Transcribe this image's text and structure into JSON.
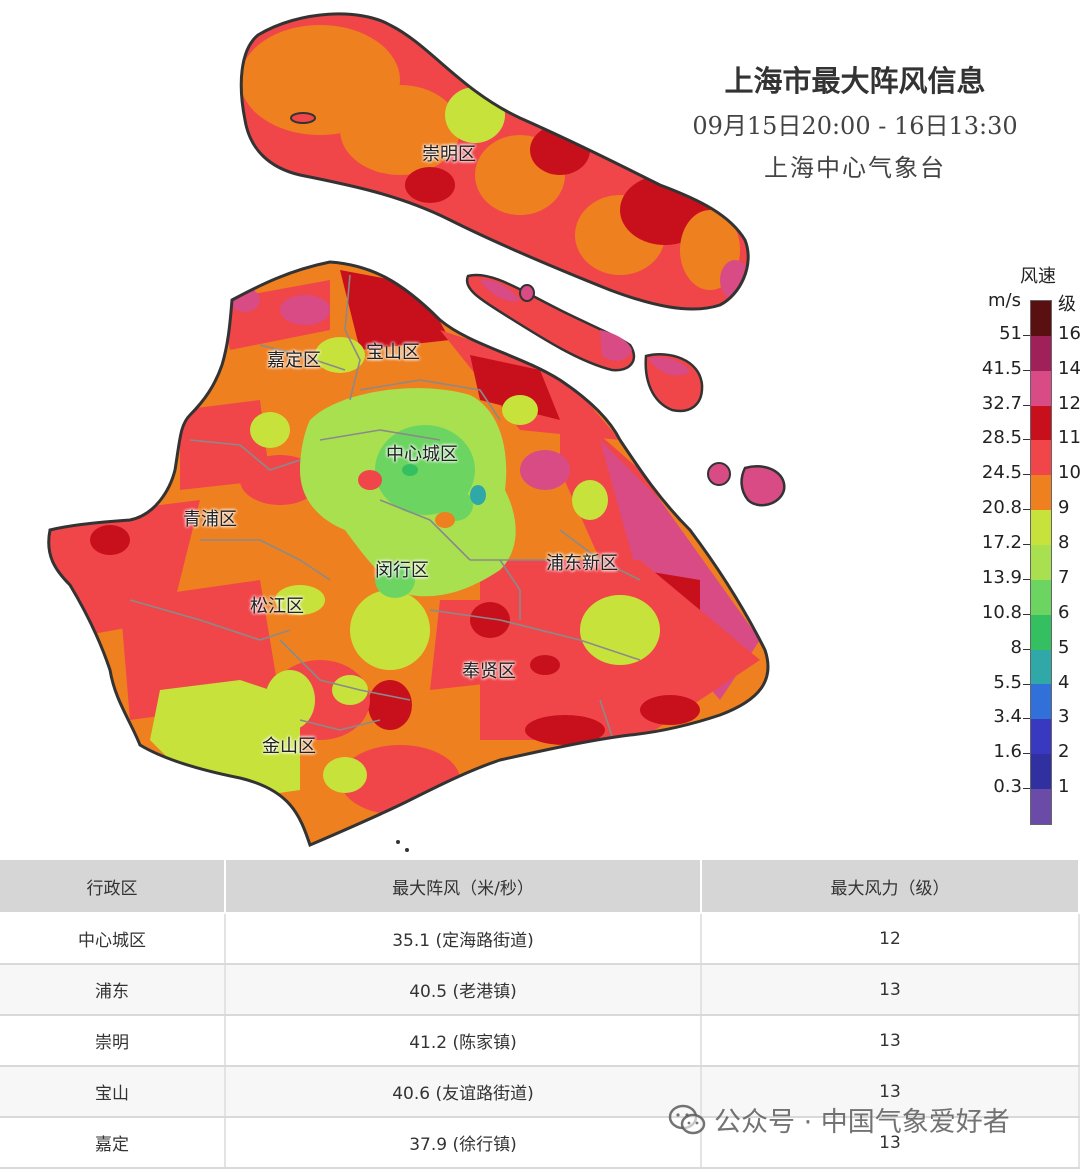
{
  "header": {
    "title": "上海市最大阵风信息",
    "subtitle": "09月15日20:00 - 16日13:30",
    "org": "上海中心气象台"
  },
  "legend": {
    "title": "风速",
    "unit": "m/s",
    "grade_header": "级",
    "colors": [
      "#5a1010",
      "#a0205a",
      "#d84b84",
      "#c8101c",
      "#f0464a",
      "#ee8020",
      "#c8e23c",
      "#a8e050",
      "#6cd460",
      "#34c060",
      "#30a8a8",
      "#3070d8",
      "#3838c0",
      "#3030a0",
      "#6a4ca8"
    ],
    "speeds": [
      "51",
      "41.5",
      "32.7",
      "28.5",
      "24.5",
      "20.8",
      "17.2",
      "13.9",
      "10.8",
      "8",
      "5.5",
      "3.4",
      "1.6",
      "0.3"
    ],
    "grades": [
      "16",
      "14",
      "12",
      "11",
      "10",
      "9",
      "8",
      "7",
      "6",
      "5",
      "4",
      "3",
      "2",
      "1"
    ]
  },
  "districts": {
    "chongming": "崇明区",
    "jiading": "嘉定区",
    "baoshan": "宝山区",
    "center": "中心城区",
    "qingpu": "青浦区",
    "minhang": "闵行区",
    "pudong": "浦东新区",
    "songjiang": "松江区",
    "fengxian": "奉贤区",
    "jinshan": "金山区"
  },
  "table": {
    "headers": [
      "行政区",
      "最大阵风（米/秒）",
      "最大风力（级）"
    ],
    "rows": [
      {
        "district": "中心城区",
        "gust": "35.1 (定海路街道)",
        "grade": "12"
      },
      {
        "district": "浦东",
        "gust": "40.5 (老港镇)",
        "grade": "13"
      },
      {
        "district": "崇明",
        "gust": "41.2 (陈家镇)",
        "grade": "13"
      },
      {
        "district": "宝山",
        "gust": "40.6 (友谊路街道)",
        "grade": "13"
      },
      {
        "district": "嘉定",
        "gust": "37.9 (徐行镇)",
        "grade": "13"
      }
    ]
  },
  "watermark": "公众号 · 中国气象爱好者"
}
